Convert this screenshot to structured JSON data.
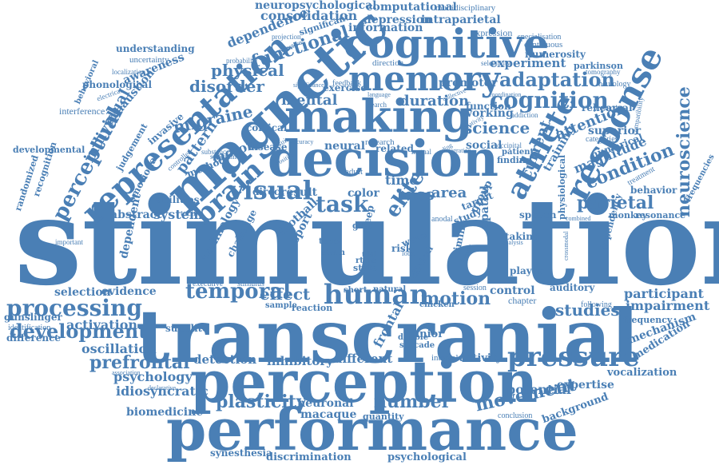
{
  "colors": {
    "ink": "#4a7fb5",
    "background": "#ffffff"
  },
  "words": [
    "stimulation",
    "transcranial",
    "perception",
    "performance",
    "magnetic",
    "decision",
    "making",
    "cognitive",
    "memory",
    "representation",
    "response",
    "athlete",
    "pressure",
    "human",
    "visual",
    "brain",
    "processing",
    "temporal",
    "cognition",
    "adaptation",
    "neuroscience",
    "development",
    "prefrontal",
    "plasticity",
    "number",
    "movement",
    "effect",
    "motion",
    "task",
    "elite",
    "parietal",
    "physical",
    "functional",
    "disorder",
    "migraine",
    "science",
    "duration",
    "mental",
    "attention",
    "condition",
    "participant",
    "studies",
    "impairment",
    "potential",
    "expertise",
    "detection",
    "inhibitory",
    "different",
    "neuronal",
    "macaque",
    "psychology",
    "idiosyncratic",
    "oscillation",
    "activation",
    "evidence",
    "selection",
    "abstract",
    "system",
    "pattern",
    "motor",
    "perceptual",
    "individual",
    "exhaustion",
    "awareness",
    "understanding",
    "uncertainty",
    "phonological",
    "interference",
    "developmental",
    "dependence",
    "consolidation",
    "neuropsychological",
    "computational",
    "depression",
    "intraparietal",
    "multidisciplinary",
    "information",
    "expression",
    "specialisation",
    "continuous",
    "numerosity",
    "premotor",
    "experiment",
    "parkinson",
    "neurology",
    "tomography",
    "rehearsal",
    "superior",
    "magnitude",
    "frequencies",
    "behavior",
    "monkey",
    "resonance",
    "neural",
    "social",
    "working",
    "current",
    "training",
    "tdcs",
    "area",
    "color",
    "time",
    "football",
    "sport",
    "frontal",
    "activity",
    "interval",
    "control",
    "chapter",
    "following",
    "mechanism",
    "medication",
    "frequency",
    "background",
    "vocalization",
    "quantity",
    "conclusion",
    "synesthesia",
    "discrimination",
    "psychological",
    "biomedicine",
    "association",
    "declarative",
    "subelite",
    "junior",
    "double",
    "saccade",
    "physiological",
    "auditory",
    "dependency",
    "player",
    "spatial",
    "taking",
    "speech",
    "result",
    "direct",
    "technology",
    "challenge",
    "dependent",
    "emotional",
    "abilities",
    "tactile",
    "invasive",
    "judgement",
    "method",
    "controlled",
    "disease",
    "cortical",
    "exercise",
    "research",
    "related",
    "adult",
    "function",
    "finding",
    "categories",
    "numerical",
    "reaction",
    "sample",
    "stimulus",
    "executive",
    "gunslinger",
    "identification",
    "difference",
    "important",
    "randomized",
    "recognition",
    "behavioral",
    "electrical",
    "localization",
    "probability",
    "perspective",
    "significant",
    "projection",
    "selectivity",
    "direction",
    "feedback",
    "significance",
    "addiction",
    "production",
    "compatibility",
    "rtms",
    "state",
    "risk",
    "wave",
    "lobe",
    "trial",
    "term",
    "sham",
    "gait",
    "sleep",
    "clinical",
    "group",
    "target",
    "study",
    "timing",
    "anodal",
    "chicken",
    "short",
    "natural",
    "session",
    "interest",
    "pursuit",
    "substance",
    "spectrum",
    "mutual",
    "search",
    "language",
    "collective",
    "patient",
    "occipital",
    "accuracy",
    "treatment",
    "combined",
    "reading",
    "crossmodal",
    "analysis",
    "positive",
    "integration",
    "creativity",
    "coordination"
  ]
}
